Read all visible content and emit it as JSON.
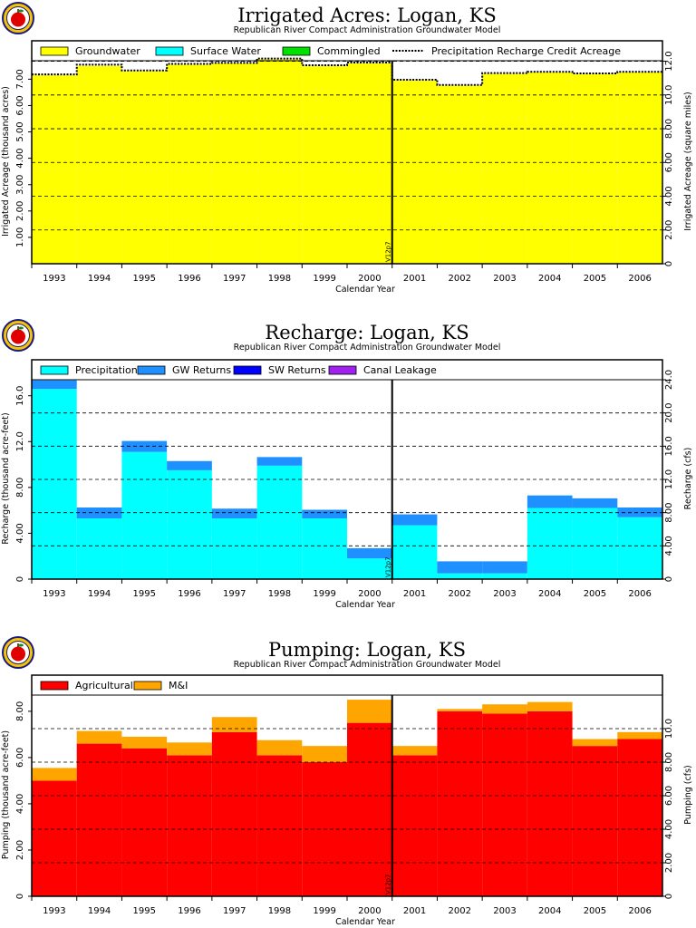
{
  "colors": {
    "groundwater": "#ffff00",
    "surface_water": "#00ffff",
    "commingled": "#00e000",
    "precipitation": "#00ffff",
    "gw_returns": "#1e90ff",
    "sw_returns": "#0000ff",
    "canal_leakage": "#a020f0",
    "agricultural": "#ff0000",
    "mi": "#ffa500",
    "grid": "#000000"
  },
  "logo_icon": "apple-seal-icon",
  "chart_data": [
    {
      "type": "bar",
      "stacked": true,
      "title": "Irrigated Acres: Logan, KS",
      "subtitle": "Republican River Compact Administration Groundwater Model",
      "xlabel": "Calendar Year",
      "ylabel": "Irrigated Acreage (thousand acres)",
      "y2label": "Irrigated Acreage (square miles)",
      "categories": [
        "1993",
        "1994",
        "1995",
        "1996",
        "1997",
        "1998",
        "1999",
        "2000",
        "2001",
        "2002",
        "2003",
        "2004",
        "2005",
        "2006"
      ],
      "ylim": [
        0,
        7.7
      ],
      "yticks": [
        "1.00",
        "2.00",
        "3.00",
        "4.00",
        "5.00",
        "6.00",
        "7.00"
      ],
      "y2lim": [
        0,
        12.03
      ],
      "y2ticks": [
        "0",
        "2.00",
        "4.00",
        "6.00",
        "8.00",
        "10.0",
        "12.0"
      ],
      "series": [
        {
          "name": "Groundwater",
          "values": [
            7.15,
            7.5,
            7.3,
            7.55,
            7.6,
            7.75,
            7.5,
            7.6,
            6.95,
            6.75,
            7.2,
            7.25,
            7.2,
            7.25
          ]
        },
        {
          "name": "Surface Water",
          "values": [
            0,
            0,
            0,
            0,
            0,
            0,
            0,
            0,
            0,
            0,
            0,
            0,
            0,
            0
          ]
        },
        {
          "name": "Commingled",
          "values": [
            0,
            0,
            0,
            0,
            0,
            0,
            0,
            0,
            0,
            0,
            0,
            0,
            0,
            0
          ]
        }
      ],
      "line_series": {
        "name": "Precipitation Recharge Credit Acreage",
        "values": [
          7.18,
          7.55,
          7.33,
          7.58,
          7.62,
          7.78,
          7.53,
          7.63,
          6.98,
          6.78,
          7.23,
          7.28,
          7.22,
          7.28
        ]
      },
      "marker": {
        "after": "2000",
        "label": "V12p7"
      },
      "legend": "top"
    },
    {
      "type": "bar",
      "stacked": true,
      "title": "Recharge: Logan, KS",
      "subtitle": "Republican River Compact Administration Groundwater Model",
      "xlabel": "Calendar Year",
      "ylabel": "Recharge (thousand acre-feet)",
      "y2label": "Recharge (cfs)",
      "categories": [
        "1993",
        "1994",
        "1995",
        "1996",
        "1997",
        "1998",
        "1999",
        "2000",
        "2001",
        "2002",
        "2003",
        "2004",
        "2005",
        "2006"
      ],
      "ylim": [
        0,
        17.4
      ],
      "yticks": [
        "0",
        "4.00",
        "8.00",
        "12.0",
        "16.0"
      ],
      "y2lim": [
        0,
        24.0
      ],
      "y2ticks": [
        "0",
        "4.00",
        "8.00",
        "12.0",
        "16.0",
        "20.0",
        "24.0"
      ],
      "series": [
        {
          "name": "Precipitation",
          "values": [
            16.6,
            5.3,
            11.1,
            9.5,
            5.3,
            9.9,
            5.3,
            1.8,
            4.7,
            0.5,
            0.5,
            6.2,
            6.2,
            5.4
          ]
        },
        {
          "name": "GW Returns",
          "values": [
            0.75,
            0.95,
            0.95,
            0.8,
            0.85,
            0.75,
            0.75,
            0.9,
            0.95,
            1.05,
            1.05,
            1.1,
            0.85,
            0.85
          ]
        },
        {
          "name": "SW Returns",
          "values": [
            0,
            0,
            0,
            0,
            0,
            0,
            0,
            0,
            0,
            0,
            0,
            0,
            0,
            0
          ]
        },
        {
          "name": "Canal Leakage",
          "values": [
            0,
            0,
            0,
            0,
            0,
            0,
            0,
            0,
            0,
            0,
            0,
            0,
            0,
            0
          ]
        }
      ],
      "marker": {
        "after": "2000",
        "label": "V12p7"
      },
      "legend": "top"
    },
    {
      "type": "bar",
      "stacked": true,
      "title": "Pumping: Logan, KS",
      "subtitle": "Republican River Compact Administration Groundwater Model",
      "xlabel": "Calendar Year",
      "ylabel": "Pumping (thousand acre-feet)",
      "y2label": "Pumping (cfs)",
      "categories": [
        "1993",
        "1994",
        "1995",
        "1996",
        "1997",
        "1998",
        "1999",
        "2000",
        "2001",
        "2002",
        "2003",
        "2004",
        "2005",
        "2006"
      ],
      "ylim": [
        0,
        8.7
      ],
      "yticks": [
        "0",
        "2.00",
        "4.00",
        "6.00",
        "8.00"
      ],
      "y2lim": [
        0,
        12.0
      ],
      "y2ticks": [
        "0",
        "2.00",
        "4.00",
        "6.00",
        "8.00",
        "10.0"
      ],
      "series": [
        {
          "name": "Agricultural",
          "values": [
            5.0,
            6.6,
            6.4,
            6.1,
            7.1,
            6.1,
            5.8,
            7.5,
            6.1,
            8.0,
            7.9,
            8.0,
            6.5,
            6.8
          ]
        },
        {
          "name": "M&I",
          "values": [
            0.55,
            0.55,
            0.5,
            0.55,
            0.65,
            0.65,
            0.7,
            1.0,
            0.4,
            0.1,
            0.4,
            0.4,
            0.3,
            0.3
          ]
        }
      ],
      "marker": {
        "after": "2000",
        "label": "V12p7"
      },
      "legend": "top"
    }
  ]
}
